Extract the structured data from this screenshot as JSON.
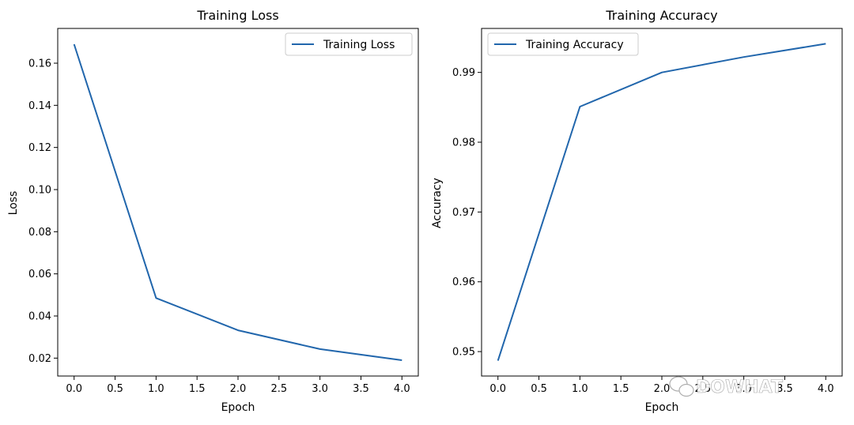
{
  "watermark": "DOWHAT",
  "chart_data": [
    {
      "type": "line",
      "title": "Training Loss",
      "xlabel": "Epoch",
      "ylabel": "Loss",
      "x": [
        0,
        1,
        2,
        3,
        4
      ],
      "series": [
        {
          "name": "Training Loss",
          "values": [
            0.169,
            0.0485,
            0.0332,
            0.0243,
            0.019
          ]
        }
      ],
      "xlim": [
        -0.2,
        4.2
      ],
      "ylim": [
        0.0115,
        0.1765
      ],
      "xticks": [
        0.0,
        0.5,
        1.0,
        1.5,
        2.0,
        2.5,
        3.0,
        3.5,
        4.0
      ],
      "xtick_labels": [
        "0.0",
        "0.5",
        "1.0",
        "1.5",
        "2.0",
        "2.5",
        "3.0",
        "3.5",
        "4.0"
      ],
      "yticks": [
        0.02,
        0.04,
        0.06,
        0.08,
        0.1,
        0.12,
        0.14,
        0.16
      ],
      "ytick_labels": [
        "0.02",
        "0.04",
        "0.06",
        "0.08",
        "0.10",
        "0.12",
        "0.14",
        "0.16"
      ],
      "legend_position": "top-right",
      "grid": false,
      "line_color": "#2166ac"
    },
    {
      "type": "line",
      "title": "Training Accuracy",
      "xlabel": "Epoch",
      "ylabel": "Accuracy",
      "x": [
        0,
        1,
        2,
        3,
        4
      ],
      "series": [
        {
          "name": "Training Accuracy",
          "values": [
            0.9487,
            0.9851,
            0.99,
            0.9922,
            0.9941
          ]
        }
      ],
      "xlim": [
        -0.2,
        4.2
      ],
      "ylim": [
        0.9465,
        0.9963
      ],
      "xticks": [
        0.0,
        0.5,
        1.0,
        1.5,
        2.0,
        2.5,
        3.0,
        3.5,
        4.0
      ],
      "xtick_labels": [
        "0.0",
        "0.5",
        "1.0",
        "1.5",
        "2.0",
        "2.5",
        "3.0",
        "3.5",
        "4.0"
      ],
      "yticks": [
        0.95,
        0.96,
        0.97,
        0.98,
        0.99
      ],
      "ytick_labels": [
        "0.95",
        "0.96",
        "0.97",
        "0.98",
        "0.99"
      ],
      "legend_position": "top-left",
      "grid": false,
      "line_color": "#2166ac"
    }
  ]
}
